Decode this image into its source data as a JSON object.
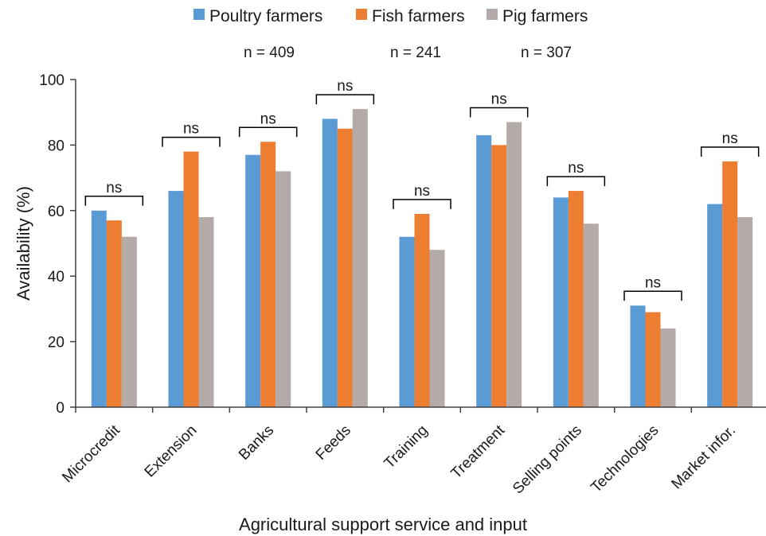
{
  "chart_data": {
    "type": "bar",
    "title": "",
    "xlabel": "Agricultural support service and input",
    "ylabel": "Availability (%)",
    "ylim": [
      0,
      100
    ],
    "yticks": [
      "0",
      "20",
      "40",
      "60",
      "80",
      "100"
    ],
    "categories": [
      "Microcredit",
      "Extension",
      "Banks",
      "Feeds",
      "Training",
      "Treatment",
      "Selling points",
      "Technologies",
      "Market infor."
    ],
    "series": [
      {
        "name": "Poultry farmers",
        "color": "#5b9bd5",
        "values": [
          60,
          66,
          77,
          88,
          52,
          83,
          64,
          31,
          62
        ]
      },
      {
        "name": "Fish farmers",
        "color": "#ed7d31",
        "values": [
          57,
          78,
          81,
          85,
          59,
          80,
          66,
          29,
          75
        ]
      },
      {
        "name": "Pig farmers",
        "color": "#b4aaa8",
        "values": [
          52,
          58,
          72,
          91,
          48,
          87,
          56,
          24,
          58
        ]
      }
    ],
    "sample_sizes": [
      "n = 409",
      "n = 241",
      "n = 307"
    ],
    "significance": [
      "ns",
      "ns",
      "ns",
      "ns",
      "ns",
      "ns",
      "ns",
      "ns",
      "ns"
    ],
    "legend_position": "top",
    "grid": false
  }
}
